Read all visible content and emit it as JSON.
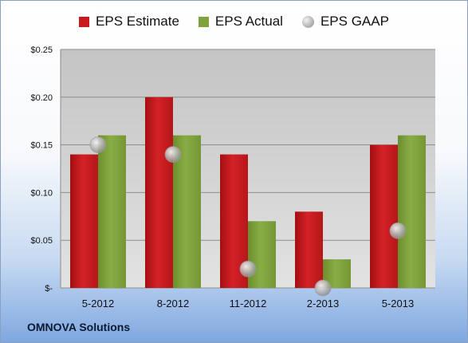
{
  "legend": {
    "estimate": "EPS Estimate",
    "actual": "EPS Actual",
    "gaap": "EPS GAAP"
  },
  "colors": {
    "estimate": "#c8191c",
    "actual": "#7fa33c",
    "gaap": "#b4b4b4"
  },
  "footer": {
    "company": "OMNOVA Solutions"
  },
  "chart_data": {
    "type": "bar",
    "categories": [
      "5-2012",
      "8-2012",
      "11-2012",
      "2-2013",
      "5-2013"
    ],
    "series": [
      {
        "name": "EPS Estimate",
        "values": [
          0.14,
          0.2,
          0.14,
          0.08,
          0.15
        ]
      },
      {
        "name": "EPS Actual",
        "values": [
          0.16,
          0.16,
          0.07,
          0.03,
          0.16
        ]
      },
      {
        "name": "EPS GAAP",
        "values": [
          0.15,
          0.14,
          0.02,
          0.0,
          0.06
        ]
      }
    ],
    "ylim": [
      0,
      0.25
    ],
    "yticks": [
      0,
      0.05,
      0.1,
      0.15,
      0.2,
      0.25
    ],
    "ytick_labels": [
      "$-",
      "$0.05",
      "$0.10",
      "$0.15",
      "$0.20",
      "$0.25"
    ],
    "grid": true,
    "legend_position": "top"
  }
}
